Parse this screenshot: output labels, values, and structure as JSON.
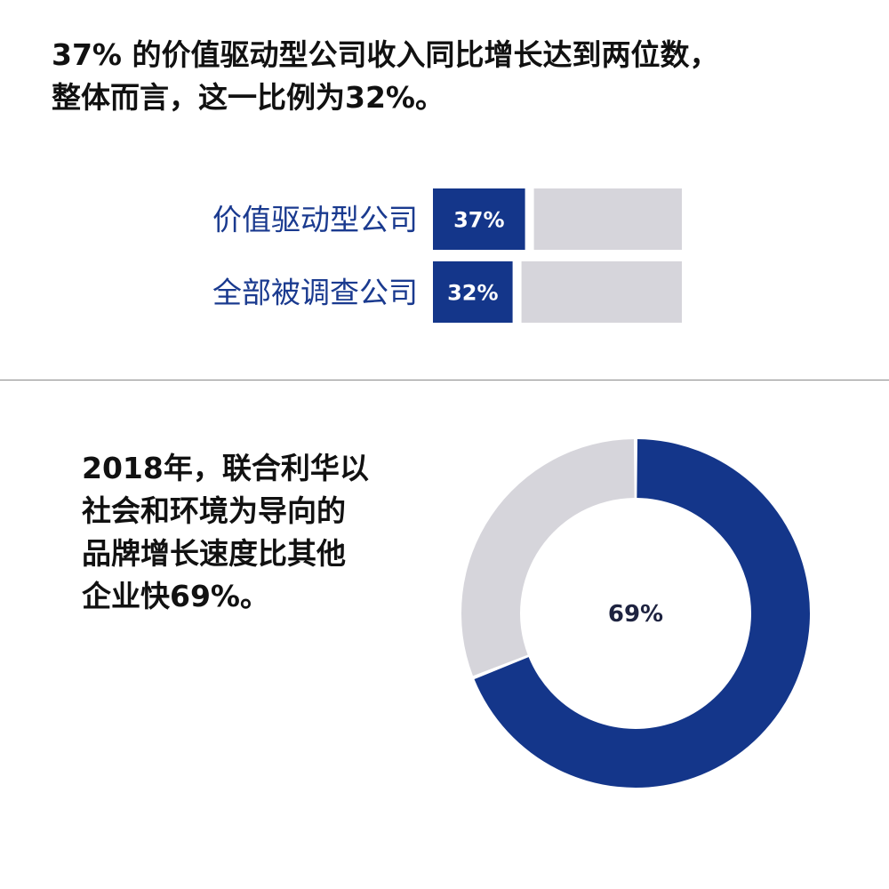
{
  "headline": {
    "line1": "37% 的价值驱动型公司收入同比增长达到两位数，",
    "line2": "整体而言，这一比例为32%。"
  },
  "caption": {
    "line1": "2018年，联合利华以",
    "line2": "社会和环境为导向的",
    "line3": "品牌增长速度比其他",
    "line4": "企业快69%。"
  },
  "colors": {
    "primary": "#14368a",
    "track": "#d6d5db",
    "label": "#1a3a8f",
    "text": "#111111"
  },
  "chart_data": [
    {
      "type": "bar",
      "orientation": "horizontal",
      "categories": [
        "价值驱动型公司",
        "全部被调查公司"
      ],
      "values": [
        37,
        32
      ],
      "value_labels": [
        "37%",
        "32%"
      ],
      "xlim": [
        0,
        100
      ]
    },
    {
      "type": "pie",
      "style": "donut",
      "values": [
        69,
        31
      ],
      "center_label": "69%"
    }
  ]
}
